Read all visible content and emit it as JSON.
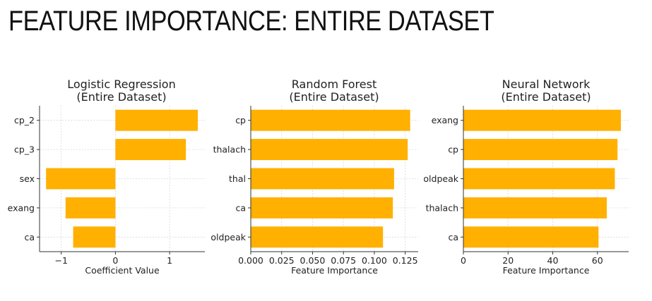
{
  "page": {
    "title": "FEATURE IMPORTANCE: ENTIRE DATASET"
  },
  "chart_data": [
    {
      "type": "bar",
      "orientation": "horizontal",
      "title": "Logistic Regression\n(Entire Dataset)",
      "categories": [
        "cp_2",
        "cp_3",
        "sex",
        "exang",
        "ca"
      ],
      "values": [
        1.52,
        1.3,
        -1.28,
        -0.92,
        -0.78
      ],
      "xlabel": "Coefficient Value",
      "ylabel": "",
      "xlim": [
        -1.4,
        1.65
      ],
      "xticks": [
        -1,
        0,
        1
      ],
      "xtick_labels": [
        "−1",
        "0",
        "1"
      ],
      "grid": true,
      "color": "#FFB000"
    },
    {
      "type": "bar",
      "orientation": "horizontal",
      "title": "Random Forest\n(Entire Dataset)",
      "categories": [
        "cp",
        "thalach",
        "thal",
        "ca",
        "oldpeak"
      ],
      "values": [
        0.129,
        0.127,
        0.116,
        0.115,
        0.107
      ],
      "xlabel": "Feature Importance",
      "ylabel": "",
      "xlim": [
        0,
        0.1355
      ],
      "xticks": [
        0,
        0.025,
        0.05,
        0.075,
        0.1,
        0.125
      ],
      "xtick_labels": [
        "0.000",
        "0.025",
        "0.050",
        "0.075",
        "0.100",
        "0.125"
      ],
      "grid": true,
      "color": "#FFB000"
    },
    {
      "type": "bar",
      "orientation": "horizontal",
      "title": "Neural Network\n(Entire Dataset)",
      "categories": [
        "exang",
        "cp",
        "oldpeak",
        "thalach",
        "ca"
      ],
      "values": [
        70.5,
        69.0,
        67.8,
        64.2,
        60.5
      ],
      "xlabel": "Feature Importance",
      "ylabel": "",
      "xlim": [
        0,
        74
      ],
      "xticks": [
        0,
        20,
        40,
        60
      ],
      "xtick_labels": [
        "0",
        "20",
        "40",
        "60"
      ],
      "grid": true,
      "color": "#FFB000"
    }
  ]
}
